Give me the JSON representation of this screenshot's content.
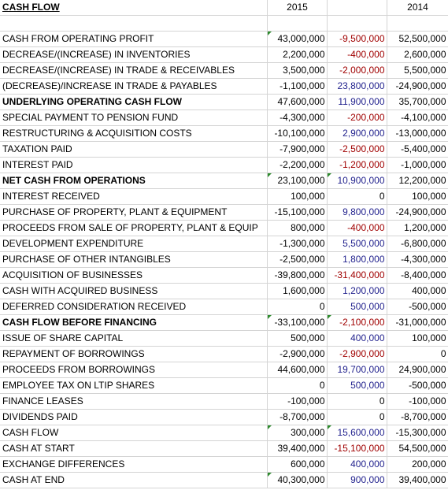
{
  "header": {
    "title": "CASH FLOW",
    "year_a": "2015",
    "year_b": "2014"
  },
  "rows": [
    {
      "label": "CASH FROM OPERATING PROFIT",
      "y2015": "43,000,000",
      "diff": "-9,500,000",
      "y2014": "52,500,000",
      "bold": false
    },
    {
      "label": "DECREASE/(INCREASE) IN INVENTORIES",
      "y2015": "2,200,000",
      "diff": "-400,000",
      "y2014": "2,600,000",
      "bold": false
    },
    {
      "label": "DECREASE/(INCREASE) IN TRADE & RECEIVABLES",
      "y2015": "3,500,000",
      "diff": "-2,000,000",
      "y2014": "5,500,000",
      "bold": false
    },
    {
      "label": "(DECREASE)/INCREASE IN TRADE & PAYABLES",
      "y2015": "-1,100,000",
      "diff": "23,800,000",
      "y2014": "-24,900,000",
      "bold": false
    },
    {
      "label": "UNDERLYING OPERATING CASH FLOW",
      "y2015": "47,600,000",
      "diff": "11,900,000",
      "y2014": "35,700,000",
      "bold": true
    },
    {
      "label": "SPECIAL PAYMENT TO PENSION FUND",
      "y2015": "-4,300,000",
      "diff": "-200,000",
      "y2014": "-4,100,000",
      "bold": false
    },
    {
      "label": "RESTRUCTURING & ACQUISITION COSTS",
      "y2015": "-10,100,000",
      "diff": "2,900,000",
      "y2014": "-13,000,000",
      "bold": false
    },
    {
      "label": "TAXATION PAID",
      "y2015": "-7,900,000",
      "diff": "-2,500,000",
      "y2014": "-5,400,000",
      "bold": false
    },
    {
      "label": "INTEREST PAID",
      "y2015": "-2,200,000",
      "diff": "-1,200,000",
      "y2014": "-1,000,000",
      "bold": false
    },
    {
      "label": "NET CASH FROM OPERATIONS",
      "y2015": "23,100,000",
      "diff": "10,900,000",
      "y2014": "12,200,000",
      "bold": true
    },
    {
      "label": "INTEREST RECEIVED",
      "y2015": "100,000",
      "diff": "0",
      "y2014": "100,000",
      "bold": false
    },
    {
      "label": "PURCHASE OF PROPERTY, PLANT & EQUIPMENT",
      "y2015": "-15,100,000",
      "diff": "9,800,000",
      "y2014": "-24,900,000",
      "bold": false
    },
    {
      "label": "PROCEEDS FROM SALE OF PROPERTY, PLANT & EQUIP",
      "y2015": "800,000",
      "diff": "-400,000",
      "y2014": "1,200,000",
      "bold": false
    },
    {
      "label": "DEVELOPMENT EXPENDITURE",
      "y2015": "-1,300,000",
      "diff": "5,500,000",
      "y2014": "-6,800,000",
      "bold": false
    },
    {
      "label": "PURCHASE OF OTHER INTANGIBLES",
      "y2015": "-2,500,000",
      "diff": "1,800,000",
      "y2014": "-4,300,000",
      "bold": false
    },
    {
      "label": "ACQUISITION OF BUSINESSES",
      "y2015": "-39,800,000",
      "diff": "-31,400,000",
      "y2014": "-8,400,000",
      "bold": false
    },
    {
      "label": "CASH WITH ACQUIRED BUSINESS",
      "y2015": "1,600,000",
      "diff": "1,200,000",
      "y2014": "400,000",
      "bold": false
    },
    {
      "label": "DEFERRED CONSIDERATION RECEIVED",
      "y2015": "0",
      "diff": "500,000",
      "y2014": "-500,000",
      "bold": false
    },
    {
      "label": "CASH FLOW BEFORE FINANCING",
      "y2015": "-33,100,000",
      "diff": "-2,100,000",
      "y2014": "-31,000,000",
      "bold": true
    },
    {
      "label": "ISSUE OF SHARE CAPITAL",
      "y2015": "500,000",
      "diff": "400,000",
      "y2014": "100,000",
      "bold": false
    },
    {
      "label": "REPAYMENT OF BORROWINGS",
      "y2015": "-2,900,000",
      "diff": "-2,900,000",
      "y2014": "0",
      "bold": false
    },
    {
      "label": "PROCEEDS FROM BORROWINGS",
      "y2015": "44,600,000",
      "diff": "19,700,000",
      "y2014": "24,900,000",
      "bold": false
    },
    {
      "label": "EMPLOYEE TAX ON LTIP SHARES",
      "y2015": "0",
      "diff": "500,000",
      "y2014": "-500,000",
      "bold": false
    },
    {
      "label": "FINANCE LEASES",
      "y2015": "-100,000",
      "diff": "0",
      "y2014": "-100,000",
      "bold": false
    },
    {
      "label": "DIVIDENDS PAID",
      "y2015": "-8,700,000",
      "diff": "0",
      "y2014": "-8,700,000",
      "bold": false
    },
    {
      "label": "CASH FLOW",
      "y2015": "300,000",
      "diff": "15,600,000",
      "y2014": "-15,300,000",
      "bold": false
    },
    {
      "label": "CASH AT START",
      "y2015": "39,400,000",
      "diff": "-15,100,000",
      "y2014": "54,500,000",
      "bold": false
    },
    {
      "label": "EXCHANGE DIFFERENCES",
      "y2015": "600,000",
      "diff": "400,000",
      "y2014": "200,000",
      "bold": false
    },
    {
      "label": "CASH AT END",
      "y2015": "40,300,000",
      "diff": "900,000",
      "y2014": "39,400,000",
      "bold": false
    }
  ],
  "colors": {
    "positive_diff": "#1f1f8c",
    "negative_diff": "#a00000",
    "gridline": "#d4d4d4",
    "comment_flag": "#2e8b2e"
  }
}
